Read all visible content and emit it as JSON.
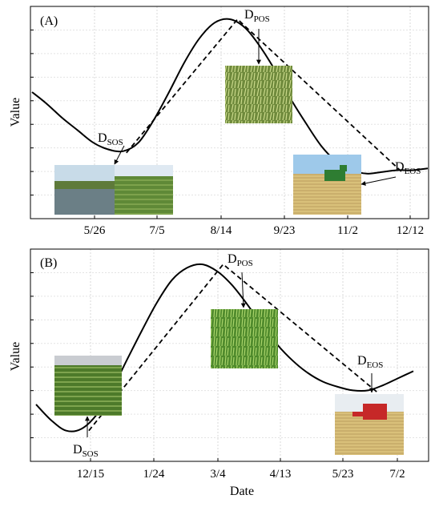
{
  "chart_data": [
    {
      "type": "line",
      "panel_label": "(A)",
      "ylabel": "Value",
      "xlabel": "",
      "x_ticks": [
        "5/26",
        "7/5",
        "8/14",
        "9/23",
        "11/2",
        "12/12"
      ],
      "grid": true,
      "series": [
        {
          "style": "solid",
          "x": [
            0,
            1,
            2,
            3,
            4,
            5,
            6,
            7,
            8,
            9,
            10,
            11,
            12,
            13,
            14,
            15,
            16,
            17,
            18,
            19,
            20,
            21,
            22,
            23,
            24,
            25,
            26
          ],
          "values": [
            0.6,
            0.53,
            0.45,
            0.38,
            0.31,
            0.27,
            0.26,
            0.31,
            0.44,
            0.6,
            0.77,
            0.91,
            1.0,
            1.02,
            0.97,
            0.86,
            0.72,
            0.56,
            0.42,
            0.29,
            0.2,
            0.15,
            0.13,
            0.14,
            0.15,
            0.15,
            0.16
          ]
        },
        {
          "style": "dashed",
          "x": [
            6.2,
            13.5,
            24.3
          ],
          "values": [
            0.25,
            1.02,
            0.14
          ]
        }
      ],
      "annotations": [
        {
          "main": "D",
          "sub": "SOS"
        },
        {
          "main": "D",
          "sub": "POS"
        },
        {
          "main": "D",
          "sub": "EOS"
        }
      ]
    },
    {
      "type": "line",
      "panel_label": "(B)",
      "ylabel": "Value",
      "xlabel": "Date",
      "x_ticks": [
        "12/15",
        "1/24",
        "3/4",
        "4/13",
        "5/23",
        "7/2"
      ],
      "grid": true,
      "series": [
        {
          "style": "solid",
          "x": [
            0,
            1,
            2,
            3,
            4,
            5,
            6,
            7,
            8,
            9,
            10,
            11,
            12,
            13,
            14,
            15,
            16,
            17,
            18,
            19,
            20,
            21,
            22,
            23,
            24,
            25
          ],
          "values": [
            0.22,
            0.13,
            0.07,
            0.08,
            0.16,
            0.3,
            0.47,
            0.64,
            0.8,
            0.93,
            1.0,
            1.02,
            0.98,
            0.9,
            0.79,
            0.67,
            0.56,
            0.47,
            0.4,
            0.35,
            0.32,
            0.3,
            0.3,
            0.33,
            0.37,
            0.41
          ]
        },
        {
          "style": "dashed",
          "x": [
            3.5,
            12.4,
            22.6
          ],
          "values": [
            0.07,
            1.02,
            0.29
          ]
        }
      ],
      "annotations": [
        {
          "main": "D",
          "sub": "SOS"
        },
        {
          "main": "D",
          "sub": "POS"
        },
        {
          "main": "D",
          "sub": "EOS"
        }
      ]
    }
  ]
}
